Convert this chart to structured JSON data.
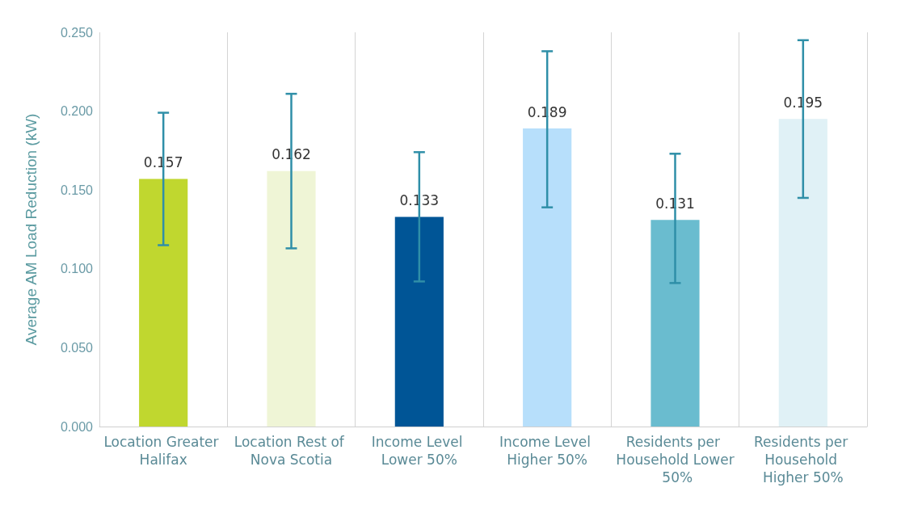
{
  "chart_data": {
    "type": "bar",
    "ylabel": "Average AM Load Reduction (kW)",
    "categories": [
      "Location Greater Halifax",
      "Location Rest of Nova Scotia",
      "Income Level Lower 50%",
      "Income Level Higher 50%",
      "Residents per Household Lower 50%",
      "Residents per Household Higher 50%"
    ],
    "values": [
      0.157,
      0.162,
      0.133,
      0.189,
      0.131,
      0.195
    ],
    "colors": [
      "#c0d72f",
      "#eff5d6",
      "#005596",
      "#b7dffb",
      "#6abccf",
      "#e0f1f6"
    ],
    "errors": [
      [
        0.115,
        0.199
      ],
      [
        0.113,
        0.211
      ],
      [
        0.092,
        0.174
      ],
      [
        0.139,
        0.238
      ],
      [
        0.091,
        0.173
      ],
      [
        0.145,
        0.245
      ]
    ],
    "data_labels": true,
    "ylim": [
      0,
      0.25
    ],
    "yticks": [
      {
        "value": 0,
        "label": "0.000"
      },
      {
        "value": 0.05,
        "label": "0.050"
      },
      {
        "value": 0.1,
        "label": "0.100"
      },
      {
        "value": 0.15,
        "label": "0.150"
      },
      {
        "value": 0.2,
        "label": "0.200"
      },
      {
        "value": 0.25,
        "label": "0.250"
      }
    ],
    "grid": "x"
  }
}
